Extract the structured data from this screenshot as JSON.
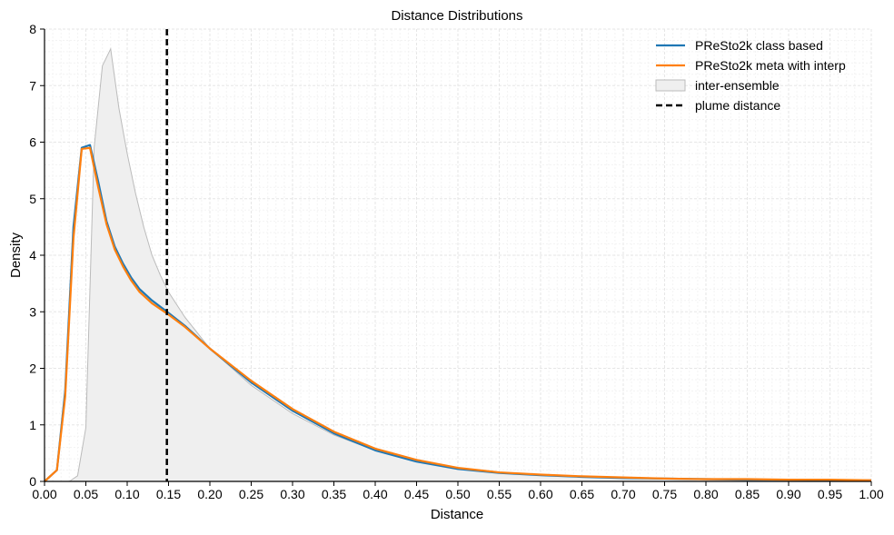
{
  "chart_data": {
    "type": "line",
    "title": "Distance Distributions",
    "xlabel": "Distance",
    "ylabel": "Density",
    "xlim": [
      0,
      1
    ],
    "ylim": [
      0,
      8
    ],
    "grid": true,
    "legend_position": "top-right",
    "x_ticks": [
      "0.00",
      "0.05",
      "0.10",
      "0.15",
      "0.20",
      "0.25",
      "0.30",
      "0.35",
      "0.40",
      "0.45",
      "0.50",
      "0.55",
      "0.60",
      "0.65",
      "0.70",
      "0.75",
      "0.80",
      "0.85",
      "0.90",
      "0.95",
      "1.00"
    ],
    "y_ticks": [
      "0",
      "1",
      "2",
      "3",
      "4",
      "5",
      "6",
      "7",
      "8"
    ],
    "series": [
      {
        "name": "PReSto2k class based",
        "color": "#1f77b4",
        "kind": "line",
        "x": [
          0.0,
          0.015,
          0.025,
          0.035,
          0.045,
          0.055,
          0.065,
          0.075,
          0.085,
          0.095,
          0.105,
          0.115,
          0.13,
          0.15,
          0.17,
          0.2,
          0.25,
          0.3,
          0.35,
          0.4,
          0.45,
          0.5,
          0.55,
          0.6,
          0.65,
          0.7,
          0.75,
          0.8,
          0.85,
          0.9,
          0.95,
          1.0
        ],
        "y": [
          0.0,
          0.2,
          1.6,
          4.5,
          5.9,
          5.95,
          5.3,
          4.6,
          4.15,
          3.85,
          3.6,
          3.4,
          3.2,
          2.98,
          2.75,
          2.35,
          1.75,
          1.25,
          0.85,
          0.55,
          0.35,
          0.22,
          0.15,
          0.11,
          0.08,
          0.06,
          0.05,
          0.04,
          0.03,
          0.03,
          0.02,
          0.02
        ]
      },
      {
        "name": "PReSto2k meta with interp",
        "color": "#ff7f0e",
        "kind": "line",
        "x": [
          0.0,
          0.015,
          0.025,
          0.035,
          0.045,
          0.055,
          0.065,
          0.075,
          0.085,
          0.095,
          0.105,
          0.115,
          0.13,
          0.15,
          0.17,
          0.2,
          0.25,
          0.3,
          0.35,
          0.4,
          0.45,
          0.5,
          0.55,
          0.6,
          0.65,
          0.7,
          0.75,
          0.8,
          0.85,
          0.9,
          0.95,
          1.0
        ],
        "y": [
          0.0,
          0.2,
          1.5,
          4.3,
          5.88,
          5.9,
          5.2,
          4.55,
          4.1,
          3.8,
          3.55,
          3.35,
          3.15,
          2.95,
          2.73,
          2.35,
          1.78,
          1.28,
          0.88,
          0.58,
          0.38,
          0.24,
          0.16,
          0.12,
          0.09,
          0.07,
          0.05,
          0.04,
          0.04,
          0.03,
          0.03,
          0.02
        ]
      },
      {
        "name": "inter-ensemble",
        "color": "#bbbbbb",
        "fill": "#efefef",
        "kind": "area",
        "x": [
          0.03,
          0.04,
          0.05,
          0.06,
          0.07,
          0.08,
          0.09,
          0.1,
          0.11,
          0.12,
          0.13,
          0.14,
          0.15,
          0.17,
          0.2,
          0.25,
          0.3,
          0.35,
          0.4,
          0.45,
          0.5,
          0.55,
          0.6,
          0.65,
          0.7,
          0.75,
          0.8,
          0.85,
          0.9,
          0.95,
          1.0
        ],
        "y": [
          0.0,
          0.1,
          0.95,
          5.9,
          7.35,
          7.65,
          6.6,
          5.8,
          5.1,
          4.5,
          4.0,
          3.65,
          3.35,
          2.9,
          2.35,
          1.7,
          1.2,
          0.82,
          0.55,
          0.36,
          0.23,
          0.15,
          0.11,
          0.08,
          0.06,
          0.05,
          0.04,
          0.03,
          0.03,
          0.02,
          0.02
        ]
      },
      {
        "name": "plume distance",
        "color": "#000000",
        "kind": "vline",
        "x": 0.148
      }
    ]
  }
}
